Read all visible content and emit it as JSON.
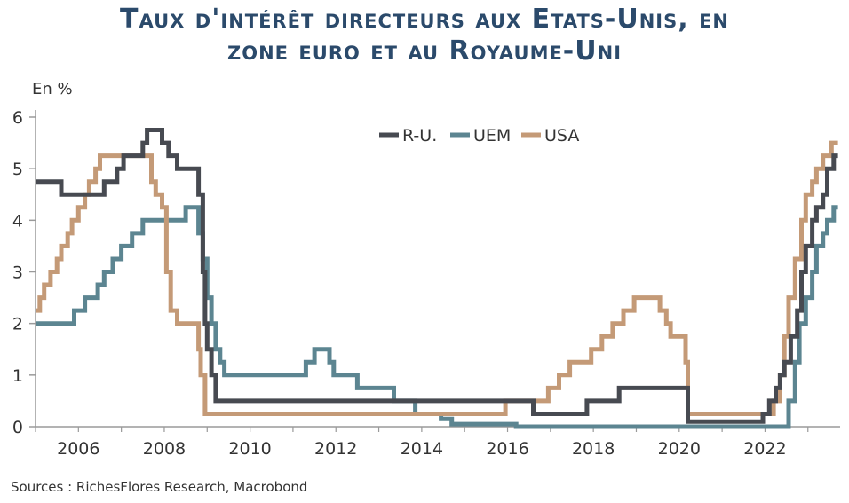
{
  "title_line1": "Taux d'intérêt directeurs aux Etats-Unis, en",
  "title_line2": "zone euro et au Royaume-Uni",
  "source": "Sources : RichesFlores Research, Macrobond",
  "chart_data": {
    "type": "line",
    "ylabel": "En %",
    "xlim": [
      2005.0,
      2023.75
    ],
    "ylim": [
      0,
      6
    ],
    "y_ticks": [
      0,
      1,
      2,
      3,
      4,
      5,
      6
    ],
    "x_ticks": [
      2006,
      2008,
      2010,
      2012,
      2014,
      2016,
      2018,
      2020,
      2022
    ],
    "grid": false,
    "legend_position": "top-center",
    "series": [
      {
        "name": "R-U.",
        "color": "#474a51",
        "points": [
          [
            2005.0,
            4.75
          ],
          [
            2005.6,
            4.75
          ],
          [
            2005.6,
            4.5
          ],
          [
            2006.6,
            4.5
          ],
          [
            2006.6,
            4.75
          ],
          [
            2006.9,
            4.75
          ],
          [
            2006.9,
            5.0
          ],
          [
            2007.05,
            5.0
          ],
          [
            2007.05,
            5.25
          ],
          [
            2007.5,
            5.25
          ],
          [
            2007.5,
            5.5
          ],
          [
            2007.6,
            5.5
          ],
          [
            2007.6,
            5.75
          ],
          [
            2007.95,
            5.75
          ],
          [
            2007.95,
            5.5
          ],
          [
            2008.1,
            5.5
          ],
          [
            2008.1,
            5.25
          ],
          [
            2008.3,
            5.25
          ],
          [
            2008.3,
            5.0
          ],
          [
            2008.8,
            5.0
          ],
          [
            2008.8,
            4.5
          ],
          [
            2008.9,
            4.5
          ],
          [
            2008.9,
            3.0
          ],
          [
            2008.95,
            3.0
          ],
          [
            2008.95,
            2.0
          ],
          [
            2009.0,
            2.0
          ],
          [
            2009.0,
            1.5
          ],
          [
            2009.1,
            1.5
          ],
          [
            2009.1,
            1.0
          ],
          [
            2009.2,
            1.0
          ],
          [
            2009.2,
            0.5
          ],
          [
            2016.6,
            0.5
          ],
          [
            2016.6,
            0.25
          ],
          [
            2017.85,
            0.25
          ],
          [
            2017.85,
            0.5
          ],
          [
            2018.6,
            0.5
          ],
          [
            2018.6,
            0.75
          ],
          [
            2020.2,
            0.75
          ],
          [
            2020.2,
            0.1
          ],
          [
            2021.95,
            0.1
          ],
          [
            2021.95,
            0.25
          ],
          [
            2022.1,
            0.25
          ],
          [
            2022.1,
            0.5
          ],
          [
            2022.25,
            0.5
          ],
          [
            2022.25,
            0.75
          ],
          [
            2022.35,
            0.75
          ],
          [
            2022.35,
            1.0
          ],
          [
            2022.45,
            1.0
          ],
          [
            2022.45,
            1.25
          ],
          [
            2022.6,
            1.25
          ],
          [
            2022.6,
            1.75
          ],
          [
            2022.75,
            1.75
          ],
          [
            2022.75,
            2.25
          ],
          [
            2022.85,
            2.25
          ],
          [
            2022.85,
            3.0
          ],
          [
            2022.95,
            3.0
          ],
          [
            2022.95,
            3.5
          ],
          [
            2023.1,
            3.5
          ],
          [
            2023.1,
            4.0
          ],
          [
            2023.2,
            4.0
          ],
          [
            2023.2,
            4.25
          ],
          [
            2023.35,
            4.25
          ],
          [
            2023.35,
            4.5
          ],
          [
            2023.45,
            4.5
          ],
          [
            2023.45,
            5.0
          ],
          [
            2023.6,
            5.0
          ],
          [
            2023.6,
            5.25
          ],
          [
            2023.7,
            5.25
          ]
        ]
      },
      {
        "name": "UEM",
        "color": "#5c8591",
        "points": [
          [
            2005.0,
            2.0
          ],
          [
            2005.9,
            2.0
          ],
          [
            2005.9,
            2.25
          ],
          [
            2006.15,
            2.25
          ],
          [
            2006.15,
            2.5
          ],
          [
            2006.45,
            2.5
          ],
          [
            2006.45,
            2.75
          ],
          [
            2006.6,
            2.75
          ],
          [
            2006.6,
            3.0
          ],
          [
            2006.8,
            3.0
          ],
          [
            2006.8,
            3.25
          ],
          [
            2007.0,
            3.25
          ],
          [
            2007.0,
            3.5
          ],
          [
            2007.25,
            3.5
          ],
          [
            2007.25,
            3.75
          ],
          [
            2007.5,
            3.75
          ],
          [
            2007.5,
            4.0
          ],
          [
            2008.5,
            4.0
          ],
          [
            2008.5,
            4.25
          ],
          [
            2008.8,
            4.25
          ],
          [
            2008.8,
            3.75
          ],
          [
            2008.9,
            3.75
          ],
          [
            2008.9,
            3.25
          ],
          [
            2009.0,
            3.25
          ],
          [
            2009.0,
            2.5
          ],
          [
            2009.1,
            2.5
          ],
          [
            2009.1,
            2.0
          ],
          [
            2009.2,
            2.0
          ],
          [
            2009.2,
            1.5
          ],
          [
            2009.3,
            1.5
          ],
          [
            2009.3,
            1.25
          ],
          [
            2009.4,
            1.25
          ],
          [
            2009.4,
            1.0
          ],
          [
            2011.3,
            1.0
          ],
          [
            2011.3,
            1.25
          ],
          [
            2011.5,
            1.25
          ],
          [
            2011.5,
            1.5
          ],
          [
            2011.85,
            1.5
          ],
          [
            2011.85,
            1.25
          ],
          [
            2011.95,
            1.25
          ],
          [
            2011.95,
            1.0
          ],
          [
            2012.5,
            1.0
          ],
          [
            2012.5,
            0.75
          ],
          [
            2013.35,
            0.75
          ],
          [
            2013.35,
            0.5
          ],
          [
            2013.85,
            0.5
          ],
          [
            2013.85,
            0.25
          ],
          [
            2014.45,
            0.25
          ],
          [
            2014.45,
            0.15
          ],
          [
            2014.7,
            0.15
          ],
          [
            2014.7,
            0.05
          ],
          [
            2016.2,
            0.05
          ],
          [
            2016.2,
            0.0
          ],
          [
            2022.55,
            0.0
          ],
          [
            2022.55,
            0.5
          ],
          [
            2022.7,
            0.5
          ],
          [
            2022.7,
            1.25
          ],
          [
            2022.8,
            1.25
          ],
          [
            2022.8,
            2.0
          ],
          [
            2022.95,
            2.0
          ],
          [
            2022.95,
            2.5
          ],
          [
            2023.1,
            2.5
          ],
          [
            2023.1,
            3.0
          ],
          [
            2023.2,
            3.0
          ],
          [
            2023.2,
            3.5
          ],
          [
            2023.35,
            3.5
          ],
          [
            2023.35,
            3.75
          ],
          [
            2023.45,
            3.75
          ],
          [
            2023.45,
            4.0
          ],
          [
            2023.6,
            4.0
          ],
          [
            2023.6,
            4.25
          ],
          [
            2023.7,
            4.25
          ]
        ]
      },
      {
        "name": "USA",
        "color": "#c49a77",
        "points": [
          [
            2005.0,
            2.25
          ],
          [
            2005.1,
            2.25
          ],
          [
            2005.1,
            2.5
          ],
          [
            2005.2,
            2.5
          ],
          [
            2005.2,
            2.75
          ],
          [
            2005.35,
            2.75
          ],
          [
            2005.35,
            3.0
          ],
          [
            2005.5,
            3.0
          ],
          [
            2005.5,
            3.25
          ],
          [
            2005.6,
            3.25
          ],
          [
            2005.6,
            3.5
          ],
          [
            2005.75,
            3.5
          ],
          [
            2005.75,
            3.75
          ],
          [
            2005.85,
            3.75
          ],
          [
            2005.85,
            4.0
          ],
          [
            2006.0,
            4.0
          ],
          [
            2006.0,
            4.25
          ],
          [
            2006.15,
            4.25
          ],
          [
            2006.15,
            4.5
          ],
          [
            2006.25,
            4.5
          ],
          [
            2006.25,
            4.75
          ],
          [
            2006.4,
            4.75
          ],
          [
            2006.4,
            5.0
          ],
          [
            2006.5,
            5.0
          ],
          [
            2006.5,
            5.25
          ],
          [
            2007.7,
            5.25
          ],
          [
            2007.7,
            4.75
          ],
          [
            2007.8,
            4.75
          ],
          [
            2007.8,
            4.5
          ],
          [
            2007.95,
            4.5
          ],
          [
            2007.95,
            4.25
          ],
          [
            2008.05,
            4.25
          ],
          [
            2008.05,
            3.0
          ],
          [
            2008.15,
            3.0
          ],
          [
            2008.15,
            2.25
          ],
          [
            2008.3,
            2.25
          ],
          [
            2008.3,
            2.0
          ],
          [
            2008.8,
            2.0
          ],
          [
            2008.8,
            1.5
          ],
          [
            2008.85,
            1.5
          ],
          [
            2008.85,
            1.0
          ],
          [
            2008.95,
            1.0
          ],
          [
            2008.95,
            0.25
          ],
          [
            2015.95,
            0.25
          ],
          [
            2015.95,
            0.5
          ],
          [
            2016.95,
            0.5
          ],
          [
            2016.95,
            0.75
          ],
          [
            2017.2,
            0.75
          ],
          [
            2017.2,
            1.0
          ],
          [
            2017.45,
            1.0
          ],
          [
            2017.45,
            1.25
          ],
          [
            2017.95,
            1.25
          ],
          [
            2017.95,
            1.5
          ],
          [
            2018.2,
            1.5
          ],
          [
            2018.2,
            1.75
          ],
          [
            2018.45,
            1.75
          ],
          [
            2018.45,
            2.0
          ],
          [
            2018.7,
            2.0
          ],
          [
            2018.7,
            2.25
          ],
          [
            2018.95,
            2.25
          ],
          [
            2018.95,
            2.5
          ],
          [
            2019.55,
            2.5
          ],
          [
            2019.55,
            2.25
          ],
          [
            2019.7,
            2.25
          ],
          [
            2019.7,
            2.0
          ],
          [
            2019.8,
            2.0
          ],
          [
            2019.8,
            1.75
          ],
          [
            2020.15,
            1.75
          ],
          [
            2020.15,
            1.25
          ],
          [
            2020.2,
            1.25
          ],
          [
            2020.2,
            0.25
          ],
          [
            2022.2,
            0.25
          ],
          [
            2022.2,
            0.5
          ],
          [
            2022.35,
            0.5
          ],
          [
            2022.35,
            1.0
          ],
          [
            2022.45,
            1.0
          ],
          [
            2022.45,
            1.75
          ],
          [
            2022.55,
            1.75
          ],
          [
            2022.55,
            2.5
          ],
          [
            2022.7,
            2.5
          ],
          [
            2022.7,
            3.25
          ],
          [
            2022.85,
            3.25
          ],
          [
            2022.85,
            4.0
          ],
          [
            2022.95,
            4.0
          ],
          [
            2022.95,
            4.5
          ],
          [
            2023.1,
            4.5
          ],
          [
            2023.1,
            4.75
          ],
          [
            2023.2,
            4.75
          ],
          [
            2023.2,
            5.0
          ],
          [
            2023.35,
            5.0
          ],
          [
            2023.35,
            5.25
          ],
          [
            2023.55,
            5.25
          ],
          [
            2023.55,
            5.5
          ],
          [
            2023.7,
            5.5
          ]
        ]
      }
    ]
  }
}
